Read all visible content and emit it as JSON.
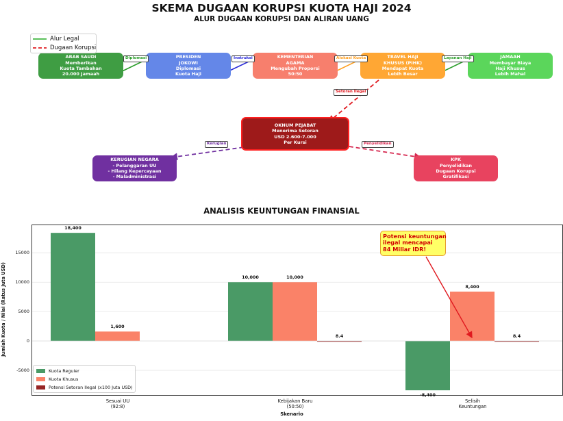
{
  "title": "SKEMA DUGAAN KORUPSI KUOTA HAJI 2024",
  "subtitle": "ALUR DUGAAN KORUPSI DAN ALIRAN UANG",
  "flow_legend": {
    "legal": {
      "label": "Alur Legal",
      "color": "#22aa22"
    },
    "corrupt": {
      "label": "Dugaan Korupsi",
      "color": "#e0191f"
    }
  },
  "nodes": [
    {
      "id": "arab",
      "lines": [
        "ARAB SAUDI",
        "Memberikan",
        "Kuota Tambahan",
        "20.000 Jamaah"
      ],
      "color": "#3f9d43"
    },
    {
      "id": "presiden",
      "lines": [
        "PRESIDEN",
        "JOKOWI",
        "Diplomasi",
        "Kuota Haji"
      ],
      "color": "#6487e8"
    },
    {
      "id": "kemenag",
      "lines": [
        "KEMENTERIAN",
        "AGAMA",
        "Mengubah Proporsi",
        "50:50"
      ],
      "color": "#f77f6d"
    },
    {
      "id": "travel",
      "lines": [
        "TRAVEL HAJI",
        "KHUSUS (PIHK)",
        "Mendapat Kuota",
        "Lebih Besar"
      ],
      "color": "#ffa734"
    },
    {
      "id": "jamaah",
      "lines": [
        "JAMAAH",
        "Membayar Biaya",
        "Haji Khusus",
        "Lebih Mahal"
      ],
      "color": "#5bd65b"
    },
    {
      "id": "pejabat",
      "lines": [
        "OKNUM PEJABAT",
        "Menerima Setoran",
        "USD 2.600-7.000",
        "Per Kursi"
      ],
      "color": "#9e1a1a",
      "border": "#ff2020"
    },
    {
      "id": "kerugian",
      "lines": [
        "KERUGIAN NEGARA",
        "- Pelanggaran UU",
        "- Hilang Kepercayaan",
        "- Maladministrasi"
      ],
      "color": "#7030a0"
    },
    {
      "id": "kpk",
      "lines": [
        "KPK",
        "Penyelidikan",
        "Dugaan Korupsi",
        "Gratifikasi"
      ],
      "color": "#e8435f"
    }
  ],
  "edges": [
    {
      "label": "Diplomasi",
      "color": "#2a9d2a"
    },
    {
      "label": "Instruksi",
      "color": "#2a2ad8"
    },
    {
      "label": "Alokasi Kuota",
      "color": "#ff9f1f"
    },
    {
      "label": "Layanan Haji",
      "color": "#2a9d2a"
    },
    {
      "label": "Setoran Ilegal",
      "color": "#e0191f"
    },
    {
      "label": "Kerugian",
      "color": "#7030a0"
    },
    {
      "label": "Penyelidikan",
      "color": "#d6274f"
    }
  ],
  "chart_data": {
    "type": "bar",
    "title": "ANALISIS KEUNTUNGAN FINANSIAL",
    "xlabel": "Skenario",
    "ylabel": "Jumlah Kuota / Nilai (Ratus Juta USD)",
    "ylim": [
      -9200,
      19700
    ],
    "yticks": [
      "15000",
      "10000",
      "5000",
      "0",
      "-5000"
    ],
    "categories": [
      [
        "Sesuai UU",
        "(92:8)"
      ],
      [
        "Kebijakan Baru",
        "(50:50)"
      ],
      [
        "Selisih",
        "Keuntungan"
      ]
    ],
    "series": [
      {
        "name": "Kuota Reguler",
        "color": "#4a9a66",
        "values": [
          18400,
          10000,
          -8400
        ],
        "labels": [
          "18,400",
          "10,000",
          "-8,400"
        ]
      },
      {
        "name": "Kuota Khusus",
        "color": "#fa8268",
        "values": [
          1600,
          10000,
          8400
        ],
        "labels": [
          "1,600",
          "10,000",
          "8,400"
        ]
      },
      {
        "name": "Potensi Setoran Ilegal (x100 Juta USD)",
        "color": "#962424",
        "values": [
          null,
          8.4,
          8.4
        ],
        "labels": [
          "",
          "8.4",
          "8.4"
        ]
      }
    ],
    "annotation": {
      "lines": [
        "Potensi keuntungan",
        "ilegal mencapai",
        "84 Miliar IDR!"
      ]
    },
    "grid": true,
    "legend": "lower-left"
  }
}
